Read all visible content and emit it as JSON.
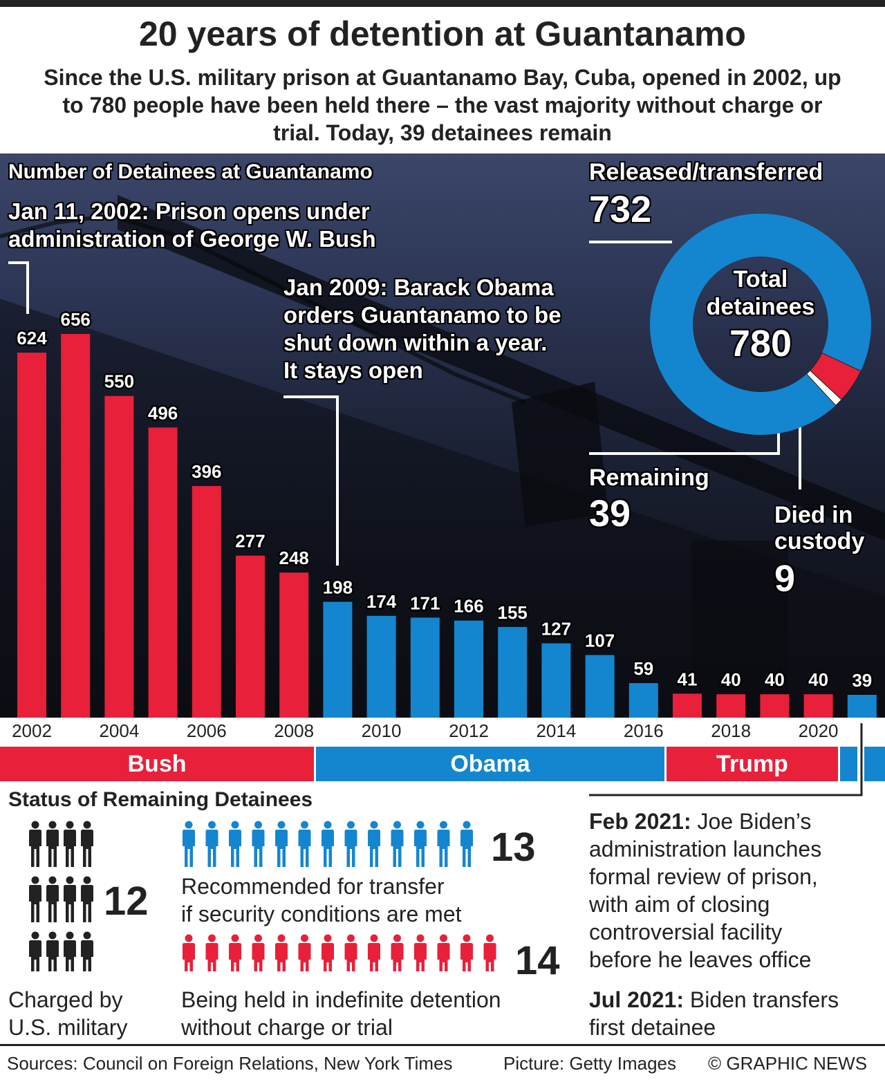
{
  "title": "20 years of detention at Guantanamo",
  "subtitle": "Since the U.S. military prison at Guantanamo Bay, Cuba, opened in 2002, up to 780 people have been held there – the vast majority without charge or trial. Today, 39 detainees remain",
  "colors": {
    "red": "#e8203a",
    "blue": "#1486cf",
    "dark": "#222222"
  },
  "chart_data": [
    {
      "type": "bar",
      "title": "Number of Detainees at Guantanamo",
      "categories": [
        "2002",
        "2003",
        "2004",
        "2005",
        "2006",
        "2007",
        "2008",
        "2009",
        "2010",
        "2011",
        "2012",
        "2013",
        "2014",
        "2015",
        "2016",
        "2017",
        "2018",
        "2019",
        "2020",
        "2021"
      ],
      "values": [
        624,
        656,
        550,
        496,
        396,
        277,
        248,
        198,
        174,
        171,
        166,
        155,
        127,
        107,
        59,
        41,
        40,
        40,
        40,
        39
      ],
      "bar_colors": [
        "red",
        "red",
        "red",
        "red",
        "red",
        "red",
        "red",
        "blue",
        "blue",
        "blue",
        "blue",
        "blue",
        "blue",
        "blue",
        "blue",
        "red",
        "red",
        "red",
        "red",
        "blue"
      ],
      "tick_labels": [
        "2002",
        "2004",
        "2006",
        "2008",
        "2010",
        "2012",
        "2014",
        "2016",
        "2018",
        "2020"
      ],
      "ylim": [
        0,
        656
      ],
      "annotations": {
        "opening": "Jan 11, 2002: Prison opens under administration of George W. Bush",
        "obama": "Jan 2009: Barack Obama orders Guantanamo to be shut down within a year. It stays open"
      },
      "administrations": [
        {
          "label": "Bush",
          "color": "red"
        },
        {
          "label": "Obama",
          "color": "blue"
        },
        {
          "label": "Trump",
          "color": "red"
        },
        {
          "label": "",
          "color": "blue"
        }
      ]
    },
    {
      "type": "pie",
      "title": "Total detainees",
      "total": "780",
      "slices": [
        {
          "label": "Released/transferred",
          "value": 732,
          "color": "blue"
        },
        {
          "label": "Remaining",
          "value": 39,
          "color": "red"
        },
        {
          "label": "Died in custody",
          "value": 9,
          "color": "white"
        }
      ]
    }
  ],
  "donut": {
    "center_line1": "Total",
    "center_line2": "detainees",
    "center_value": "780",
    "released_label": "Released/transferred",
    "released_value": "732",
    "remaining_label": "Remaining",
    "remaining_value": "39",
    "died_line1": "Died in",
    "died_line2": "custody",
    "died_value": "9"
  },
  "chart_heading": "Number of Detainees at Guantanamo",
  "annotation_open_line1": "Jan 11, 2002: Prison opens under",
  "annotation_open_line2": "administration of George W. Bush",
  "annotation_obama_line1": "Jan 2009: Barack Obama",
  "annotation_obama_line2": "orders Guantanamo to be",
  "annotation_obama_line3": "shut down within a year.",
  "annotation_obama_line4": "It stays open",
  "status": {
    "heading": "Status of Remaining Detainees",
    "charged_count": "12",
    "charged_line1": "Charged by",
    "charged_line2": "U.S. military",
    "transfer_count": "13",
    "transfer_line1": "Recommended for transfer",
    "transfer_line2": "if security conditions are met",
    "indefinite_count": "14",
    "indefinite_line1": "Being held in indefinite detention",
    "indefinite_line2": "without charge or trial"
  },
  "biden": {
    "feb_date": "Feb 2021:",
    "feb_line1": "Joe Biden’s",
    "feb_line2": "administration launches",
    "feb_line3": "formal review of prison,",
    "feb_line4": "with aim of closing",
    "feb_line5": "controversial facility",
    "feb_line6": "before he leaves office",
    "jul_date": "Jul 2021:",
    "jul_line1": "Biden transfers",
    "jul_line2": "first detainee"
  },
  "footer": {
    "sources": "Sources: Council on Foreign Relations, New York Times",
    "picture": "Picture: Getty Images",
    "credit": "© GRAPHIC NEWS"
  }
}
